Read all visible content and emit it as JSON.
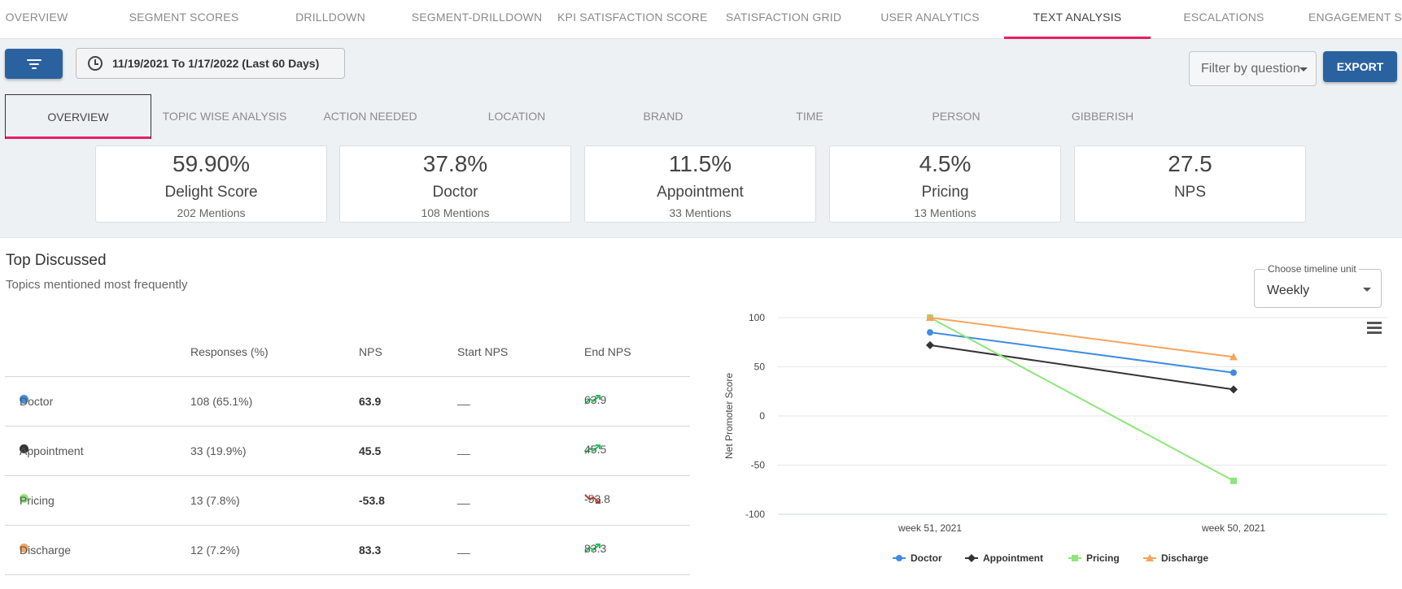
{
  "topnav": {
    "tabs": [
      {
        "label": "OVERVIEW"
      },
      {
        "label": "SEGMENT SCORES"
      },
      {
        "label": "DRILLDOWN"
      },
      {
        "label": "SEGMENT-DRILLDOWN"
      },
      {
        "label": "KPI SATISFACTION SCORE"
      },
      {
        "label": "SATISFACTION GRID"
      },
      {
        "label": "USER ANALYTICS"
      },
      {
        "label": "TEXT ANALYSIS"
      },
      {
        "label": "ESCALATIONS"
      },
      {
        "label": "ENGAGEMENT SU"
      }
    ],
    "active_index": 7
  },
  "toolbar": {
    "date_range": "11/19/2021 To 1/17/2022 (Last 60 Days)",
    "question_filter": "Filter by question",
    "export_label": "EXPORT"
  },
  "subtabs": [
    {
      "label": "OVERVIEW"
    },
    {
      "label": "TOPIC WISE ANALYSIS"
    },
    {
      "label": "ACTION NEEDED"
    },
    {
      "label": "LOCATION"
    },
    {
      "label": "BRAND"
    },
    {
      "label": "TIME"
    },
    {
      "label": "PERSON"
    },
    {
      "label": "GIBBERISH"
    }
  ],
  "cards": [
    {
      "value": "59.90%",
      "name": "Delight Score",
      "mentions": "202 Mentions"
    },
    {
      "value": "37.8%",
      "name": "Doctor",
      "mentions": "108 Mentions"
    },
    {
      "value": "11.5%",
      "name": "Appointment",
      "mentions": "33 Mentions"
    },
    {
      "value": "4.5%",
      "name": "Pricing",
      "mentions": "13 Mentions"
    },
    {
      "value": "27.5",
      "name": "NPS",
      "mentions": ""
    }
  ],
  "section": {
    "title": "Top Discussed",
    "subtitle": "Topics mentioned most frequently"
  },
  "table": {
    "headers": {
      "responses": "Responses (%)",
      "nps": "NPS",
      "start_nps": "Start NPS",
      "end_nps": "End NPS"
    },
    "rows": [
      {
        "topic": "Doctor",
        "color": "#3f8de0",
        "responses": "108 (65.1%)",
        "nps": "63.9",
        "start_nps": "__",
        "end_nps": "63.9",
        "trend": "up"
      },
      {
        "topic": "Appointment",
        "color": "#333333",
        "responses": "33 (19.9%)",
        "nps": "45.5",
        "start_nps": "__",
        "end_nps": "45.5",
        "trend": "up"
      },
      {
        "topic": "Pricing",
        "color": "#8ee67a",
        "responses": "13 (7.8%)",
        "nps": "-53.8",
        "start_nps": "__",
        "end_nps": "-53.8",
        "trend": "down"
      },
      {
        "topic": "Discharge",
        "color": "#f7a35c",
        "responses": "12 (7.2%)",
        "nps": "83.3",
        "start_nps": "__",
        "end_nps": "83.3",
        "trend": "up"
      }
    ]
  },
  "timeline": {
    "label": "Choose timeline unit",
    "selected": "Weekly"
  },
  "chart_data": {
    "type": "line",
    "categories": [
      "week 51, 2021",
      "week 50, 2021"
    ],
    "series": [
      {
        "name": "Doctor",
        "color": "#3f8de0",
        "marker": "circle",
        "values": [
          85,
          44
        ]
      },
      {
        "name": "Appointment",
        "color": "#333333",
        "marker": "diamond",
        "values": [
          72,
          27
        ]
      },
      {
        "name": "Pricing",
        "color": "#8ee67a",
        "marker": "square",
        "values": [
          100,
          -66
        ]
      },
      {
        "name": "Discharge",
        "color": "#f7a35c",
        "marker": "triangle",
        "values": [
          100,
          60
        ]
      }
    ],
    "ylabel": "Net Promoter Score",
    "xlabel": "",
    "ylim": [
      -100,
      100
    ],
    "yticks": [
      "100",
      "50",
      "0",
      "-50",
      "-100"
    ],
    "grid": true,
    "legend": "bottom"
  }
}
